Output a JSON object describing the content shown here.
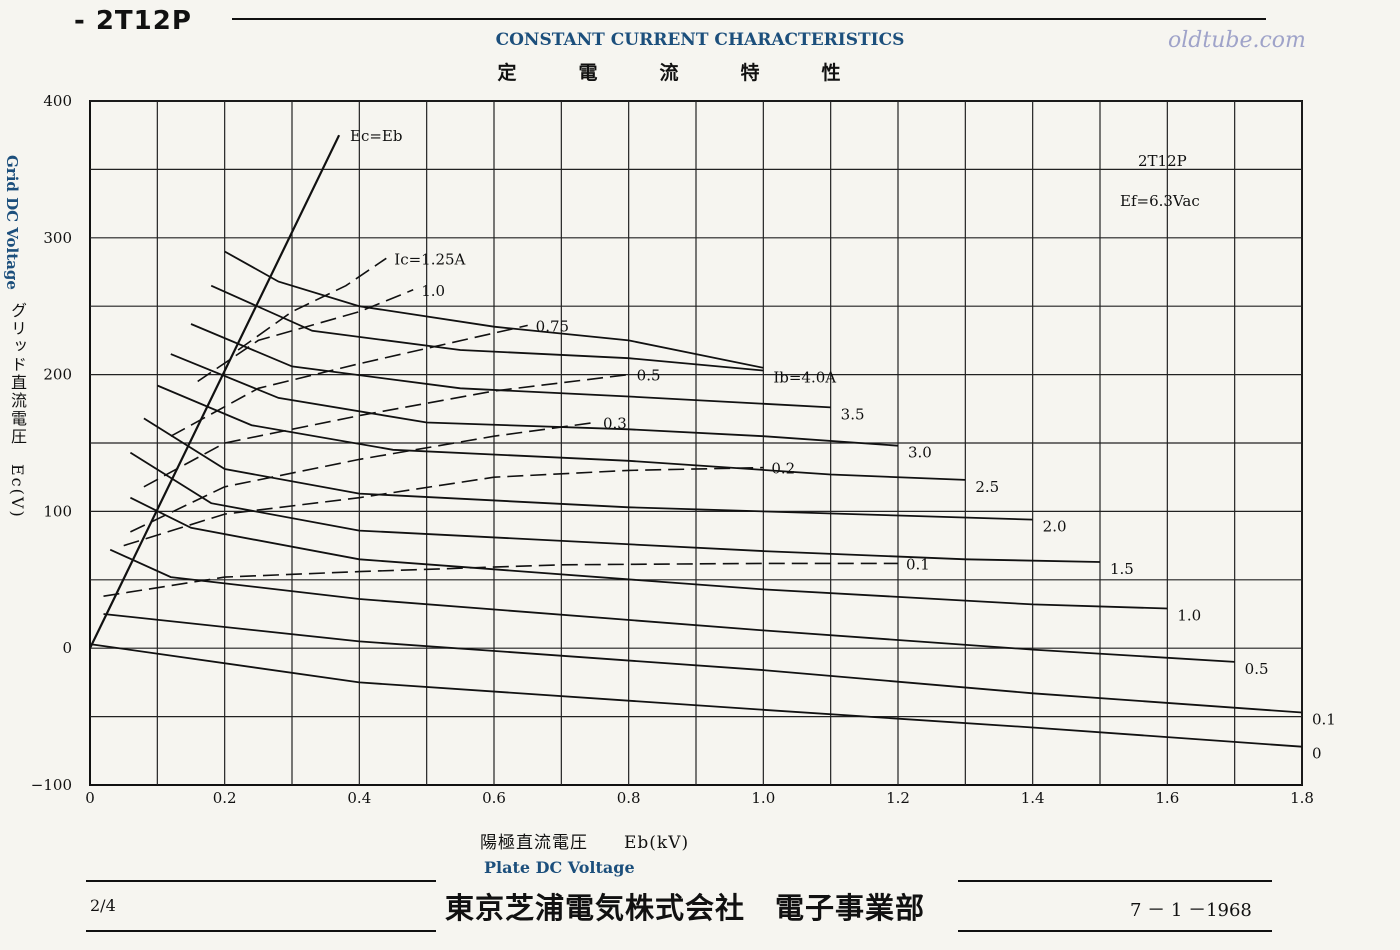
{
  "header": {
    "tube": "- 2T12P",
    "title_en": "CONSTANT CURRENT CHARACTERISTICS",
    "title_jp": "定電流特性",
    "watermark": "oldtube.com"
  },
  "axes": {
    "y_title_en": "Grid DC Voltage",
    "y_title_jp": "グリッド直流電圧　Ec(V)",
    "x_title_jp": "陽極直流電圧　　Eb(kV)",
    "x_title_en": "Plate DC Voltage"
  },
  "footer": {
    "page": "2/4",
    "company": "東京芝浦電気株式会社　電子事業部",
    "date": "7 － 1 －1968"
  },
  "chart_data": {
    "type": "line",
    "xlim": [
      0,
      1.8
    ],
    "ylim": [
      -100,
      400
    ],
    "x_ticks": [
      {
        "v": 0,
        "label": "0"
      },
      {
        "v": 0.2,
        "label": "0.2"
      },
      {
        "v": 0.4,
        "label": "0.4"
      },
      {
        "v": 0.6,
        "label": "0.6"
      },
      {
        "v": 0.8,
        "label": "0.8"
      },
      {
        "v": 1.0,
        "label": "1.0"
      },
      {
        "v": 1.2,
        "label": "1.2"
      },
      {
        "v": 1.4,
        "label": "1.4"
      },
      {
        "v": 1.6,
        "label": "1.6"
      },
      {
        "v": 1.8,
        "label": "1.8"
      }
    ],
    "y_ticks": [
      {
        "v": -100,
        "label": "−100"
      },
      {
        "v": 0,
        "label": "0"
      },
      {
        "v": 100,
        "label": "100"
      },
      {
        "v": 200,
        "label": "200"
      },
      {
        "v": 300,
        "label": "300"
      },
      {
        "v": 400,
        "label": "400"
      }
    ],
    "grid_x": [
      0.1,
      0.2,
      0.3,
      0.4,
      0.5,
      0.6,
      0.7,
      0.8,
      0.9,
      1.0,
      1.1,
      1.2,
      1.3,
      1.4,
      1.5,
      1.6,
      1.7,
      1.8
    ],
    "grid_y": [
      -50,
      0,
      50,
      100,
      150,
      200,
      250,
      300,
      350,
      400
    ],
    "grid": true,
    "annotations": {
      "tube": "2T12P",
      "filament": "Ef=6.3Vac",
      "ecb": "Ec=Eb"
    },
    "ec_eq_eb": [
      [
        0,
        0
      ],
      [
        0.37,
        375
      ]
    ],
    "plate_current_series": [
      {
        "label": "0",
        "points": [
          [
            0,
            3
          ],
          [
            0.4,
            -25
          ],
          [
            1.0,
            -45
          ],
          [
            1.4,
            -58
          ],
          [
            1.8,
            -72
          ]
        ]
      },
      {
        "label": "0.1",
        "points": [
          [
            0.02,
            25
          ],
          [
            0.4,
            5
          ],
          [
            1.0,
            -16
          ],
          [
            1.4,
            -33
          ],
          [
            1.8,
            -47
          ]
        ]
      },
      {
        "label": "0.5",
        "points": [
          [
            0.03,
            72
          ],
          [
            0.12,
            52
          ],
          [
            0.4,
            36
          ],
          [
            1.0,
            13
          ],
          [
            1.4,
            -1
          ],
          [
            1.7,
            -10
          ]
        ]
      },
      {
        "label": "1.0",
        "points": [
          [
            0.06,
            110
          ],
          [
            0.15,
            88
          ],
          [
            0.4,
            65
          ],
          [
            1.0,
            43
          ],
          [
            1.4,
            32
          ],
          [
            1.6,
            29
          ]
        ]
      },
      {
        "label": "1.5",
        "points": [
          [
            0.06,
            143
          ],
          [
            0.18,
            106
          ],
          [
            0.4,
            86
          ],
          [
            1.0,
            71
          ],
          [
            1.3,
            65
          ],
          [
            1.5,
            63
          ]
        ]
      },
      {
        "label": "2.0",
        "points": [
          [
            0.08,
            168
          ],
          [
            0.2,
            131
          ],
          [
            0.4,
            113
          ],
          [
            0.8,
            103
          ],
          [
            1.2,
            97
          ],
          [
            1.4,
            94
          ]
        ]
      },
      {
        "label": "2.5",
        "points": [
          [
            0.1,
            192
          ],
          [
            0.24,
            163
          ],
          [
            0.45,
            145
          ],
          [
            0.8,
            137
          ],
          [
            1.1,
            127
          ],
          [
            1.3,
            123
          ]
        ]
      },
      {
        "label": "3.0",
        "points": [
          [
            0.12,
            215
          ],
          [
            0.28,
            183
          ],
          [
            0.5,
            165
          ],
          [
            0.8,
            160
          ],
          [
            1.0,
            155
          ],
          [
            1.2,
            148
          ]
        ]
      },
      {
        "label": "3.5",
        "points": [
          [
            0.15,
            237
          ],
          [
            0.3,
            206
          ],
          [
            0.55,
            190
          ],
          [
            0.8,
            184
          ],
          [
            1.1,
            176
          ]
        ]
      },
      {
        "label": "Ib=4.0A",
        "points": [
          [
            0.18,
            265
          ],
          [
            0.33,
            232
          ],
          [
            0.55,
            218
          ],
          [
            0.8,
            212
          ],
          [
            1.0,
            203
          ]
        ]
      },
      {
        "label": "",
        "points": [
          [
            0.2,
            290
          ],
          [
            0.28,
            268
          ],
          [
            0.4,
            250
          ],
          [
            0.6,
            235
          ],
          [
            0.8,
            225
          ],
          [
            1.0,
            205
          ]
        ]
      }
    ],
    "grid_current_series": [
      {
        "label": "0.1",
        "points": [
          [
            0.02,
            38
          ],
          [
            0.2,
            52
          ],
          [
            0.4,
            56
          ],
          [
            0.7,
            61
          ],
          [
            1.0,
            62
          ],
          [
            1.2,
            62
          ]
        ]
      },
      {
        "label": "0.2",
        "points": [
          [
            0.05,
            75
          ],
          [
            0.2,
            98
          ],
          [
            0.4,
            110
          ],
          [
            0.6,
            125
          ],
          [
            0.8,
            130
          ],
          [
            1.0,
            132
          ]
        ]
      },
      {
        "label": "0.3",
        "points": [
          [
            0.06,
            85
          ],
          [
            0.2,
            118
          ],
          [
            0.4,
            138
          ],
          [
            0.6,
            155
          ],
          [
            0.75,
            165
          ]
        ]
      },
      {
        "label": "0.5",
        "points": [
          [
            0.08,
            118
          ],
          [
            0.2,
            150
          ],
          [
            0.4,
            170
          ],
          [
            0.6,
            188
          ],
          [
            0.8,
            200
          ]
        ]
      },
      {
        "label": "0.75",
        "points": [
          [
            0.12,
            155
          ],
          [
            0.25,
            190
          ],
          [
            0.4,
            208
          ],
          [
            0.65,
            236
          ]
        ]
      },
      {
        "label": "1.0",
        "points": [
          [
            0.16,
            195
          ],
          [
            0.25,
            225
          ],
          [
            0.4,
            246
          ],
          [
            0.48,
            262
          ]
        ]
      },
      {
        "label": "Ic=1.25A",
        "points": [
          [
            0.22,
            218
          ],
          [
            0.3,
            246
          ],
          [
            0.38,
            265
          ],
          [
            0.44,
            285
          ]
        ]
      }
    ]
  }
}
